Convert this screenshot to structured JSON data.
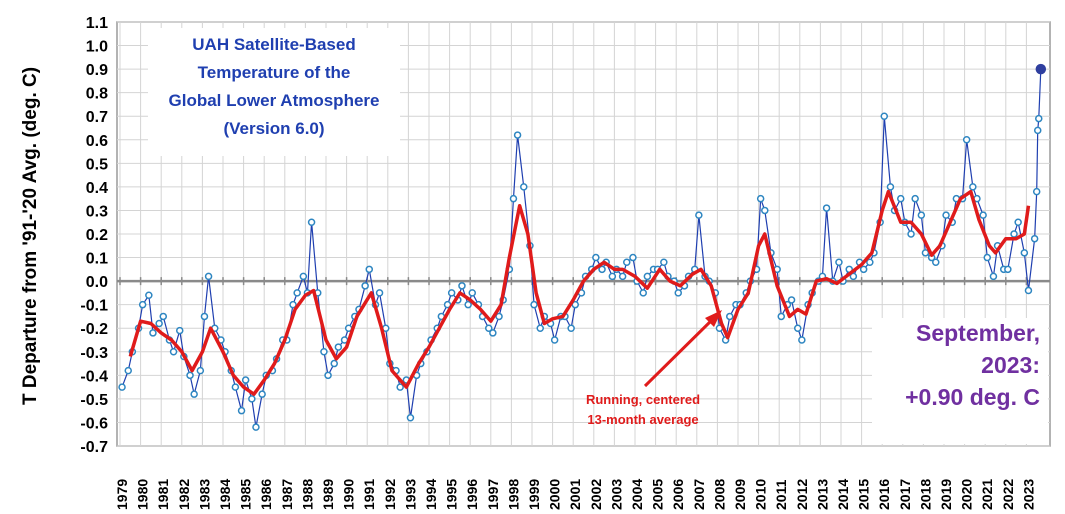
{
  "chart_data": {
    "type": "line",
    "title": [
      "UAH Satellite-Based",
      "Temperature of the",
      "Global Lower Atmosphere",
      "(Version 6.0)"
    ],
    "ylabel": "T Departure from '91-'20 Avg. (deg. C)",
    "xlabel": "",
    "ylim": [
      -0.7,
      1.1
    ],
    "yticks": [
      "1.1",
      "1.0",
      "0.9",
      "0.8",
      "0.7",
      "0.6",
      "0.5",
      "0.4",
      "0.3",
      "0.2",
      "0.1",
      "0.0",
      "-0.1",
      "-0.2",
      "-0.3",
      "-0.4",
      "-0.5",
      "-0.6",
      "-0.7"
    ],
    "xticks": [
      "1979",
      "1980",
      "1981",
      "1982",
      "1983",
      "1984",
      "1985",
      "1986",
      "1987",
      "1988",
      "1989",
      "1990",
      "1991",
      "1992",
      "1993",
      "1994",
      "1995",
      "1996",
      "1997",
      "1998",
      "1999",
      "2000",
      "2001",
      "2002",
      "2003",
      "2004",
      "2005",
      "2006",
      "2007",
      "2008",
      "2009",
      "2010",
      "2011",
      "2012",
      "2013",
      "2014",
      "2015",
      "2016",
      "2017",
      "2018",
      "2019",
      "2020",
      "2021",
      "2022",
      "2023"
    ],
    "grid": true,
    "colors": {
      "monthly": "#1f3fb0",
      "marker": "#2e86c1",
      "running": "#e01b1b",
      "title": "#1f3fb0",
      "annotation": "#7030a0",
      "last_point": "#2f3f9f"
    },
    "series": [
      {
        "kind": "monthly",
        "points": [
          [
            1979.1,
            -0.45
          ],
          [
            1979.4,
            -0.38
          ],
          [
            1979.6,
            -0.3
          ],
          [
            1979.9,
            -0.2
          ],
          [
            1980.1,
            -0.1
          ],
          [
            1980.4,
            -0.06
          ],
          [
            1980.6,
            -0.22
          ],
          [
            1980.9,
            -0.18
          ],
          [
            1981.1,
            -0.15
          ],
          [
            1981.4,
            -0.25
          ],
          [
            1981.6,
            -0.3
          ],
          [
            1981.9,
            -0.21
          ],
          [
            1982.1,
            -0.32
          ],
          [
            1982.4,
            -0.4
          ],
          [
            1982.6,
            -0.48
          ],
          [
            1982.9,
            -0.38
          ],
          [
            1983.1,
            -0.15
          ],
          [
            1983.3,
            0.02
          ],
          [
            1983.6,
            -0.2
          ],
          [
            1983.9,
            -0.25
          ],
          [
            1984.1,
            -0.3
          ],
          [
            1984.4,
            -0.38
          ],
          [
            1984.6,
            -0.45
          ],
          [
            1984.9,
            -0.55
          ],
          [
            1985.1,
            -0.42
          ],
          [
            1985.4,
            -0.5
          ],
          [
            1985.6,
            -0.62
          ],
          [
            1985.9,
            -0.48
          ],
          [
            1986.1,
            -0.4
          ],
          [
            1986.4,
            -0.38
          ],
          [
            1986.6,
            -0.33
          ],
          [
            1986.9,
            -0.25
          ],
          [
            1987.1,
            -0.25
          ],
          [
            1987.4,
            -0.1
          ],
          [
            1987.6,
            -0.05
          ],
          [
            1987.9,
            0.02
          ],
          [
            1988.1,
            -0.05
          ],
          [
            1988.3,
            0.25
          ],
          [
            1988.6,
            -0.05
          ],
          [
            1988.9,
            -0.3
          ],
          [
            1989.1,
            -0.4
          ],
          [
            1989.4,
            -0.35
          ],
          [
            1989.6,
            -0.28
          ],
          [
            1989.9,
            -0.25
          ],
          [
            1990.1,
            -0.2
          ],
          [
            1990.4,
            -0.15
          ],
          [
            1990.6,
            -0.12
          ],
          [
            1990.9,
            -0.02
          ],
          [
            1991.1,
            0.05
          ],
          [
            1991.4,
            -0.1
          ],
          [
            1991.6,
            -0.05
          ],
          [
            1991.9,
            -0.2
          ],
          [
            1992.1,
            -0.35
          ],
          [
            1992.4,
            -0.38
          ],
          [
            1992.6,
            -0.45
          ],
          [
            1992.9,
            -0.42
          ],
          [
            1993.1,
            -0.58
          ],
          [
            1993.4,
            -0.4
          ],
          [
            1993.6,
            -0.35
          ],
          [
            1993.9,
            -0.3
          ],
          [
            1994.1,
            -0.25
          ],
          [
            1994.4,
            -0.2
          ],
          [
            1994.6,
            -0.15
          ],
          [
            1994.9,
            -0.1
          ],
          [
            1995.1,
            -0.05
          ],
          [
            1995.4,
            -0.08
          ],
          [
            1995.6,
            -0.02
          ],
          [
            1995.9,
            -0.1
          ],
          [
            1996.1,
            -0.05
          ],
          [
            1996.4,
            -0.1
          ],
          [
            1996.6,
            -0.15
          ],
          [
            1996.9,
            -0.2
          ],
          [
            1997.1,
            -0.22
          ],
          [
            1997.4,
            -0.15
          ],
          [
            1997.6,
            -0.08
          ],
          [
            1997.9,
            0.05
          ],
          [
            1998.1,
            0.35
          ],
          [
            1998.3,
            0.62
          ],
          [
            1998.6,
            0.4
          ],
          [
            1998.9,
            0.15
          ],
          [
            1999.1,
            -0.1
          ],
          [
            1999.4,
            -0.2
          ],
          [
            1999.6,
            -0.15
          ],
          [
            1999.9,
            -0.18
          ],
          [
            2000.1,
            -0.25
          ],
          [
            2000.4,
            -0.15
          ],
          [
            2000.6,
            -0.15
          ],
          [
            2000.9,
            -0.2
          ],
          [
            2001.1,
            -0.1
          ],
          [
            2001.4,
            -0.05
          ],
          [
            2001.6,
            0.02
          ],
          [
            2001.9,
            0.05
          ],
          [
            2002.1,
            0.1
          ],
          [
            2002.4,
            0.05
          ],
          [
            2002.6,
            0.08
          ],
          [
            2002.9,
            0.02
          ],
          [
            2003.1,
            0.05
          ],
          [
            2003.4,
            0.02
          ],
          [
            2003.6,
            0.08
          ],
          [
            2003.9,
            0.1
          ],
          [
            2004.1,
            0.0
          ],
          [
            2004.4,
            -0.05
          ],
          [
            2004.6,
            0.02
          ],
          [
            2004.9,
            0.05
          ],
          [
            2005.1,
            0.05
          ],
          [
            2005.4,
            0.08
          ],
          [
            2005.6,
            0.02
          ],
          [
            2005.9,
            0.0
          ],
          [
            2006.1,
            -0.05
          ],
          [
            2006.4,
            -0.02
          ],
          [
            2006.6,
            0.02
          ],
          [
            2006.9,
            0.05
          ],
          [
            2007.1,
            0.28
          ],
          [
            2007.4,
            0.02
          ],
          [
            2007.6,
            0.0
          ],
          [
            2007.9,
            -0.05
          ],
          [
            2008.1,
            -0.2
          ],
          [
            2008.4,
            -0.25
          ],
          [
            2008.6,
            -0.15
          ],
          [
            2008.9,
            -0.1
          ],
          [
            2009.1,
            -0.1
          ],
          [
            2009.4,
            -0.05
          ],
          [
            2009.6,
            0.0
          ],
          [
            2009.9,
            0.05
          ],
          [
            2010.1,
            0.35
          ],
          [
            2010.3,
            0.3
          ],
          [
            2010.6,
            0.12
          ],
          [
            2010.9,
            0.05
          ],
          [
            2011.1,
            -0.15
          ],
          [
            2011.4,
            -0.1
          ],
          [
            2011.6,
            -0.08
          ],
          [
            2011.9,
            -0.2
          ],
          [
            2012.1,
            -0.25
          ],
          [
            2012.4,
            -0.1
          ],
          [
            2012.6,
            -0.05
          ],
          [
            2012.9,
            0.0
          ],
          [
            2013.1,
            0.02
          ],
          [
            2013.3,
            0.31
          ],
          [
            2013.6,
            0.0
          ],
          [
            2013.9,
            0.08
          ],
          [
            2014.1,
            0.0
          ],
          [
            2014.4,
            0.05
          ],
          [
            2014.6,
            0.02
          ],
          [
            2014.9,
            0.08
          ],
          [
            2015.1,
            0.05
          ],
          [
            2015.4,
            0.08
          ],
          [
            2015.6,
            0.12
          ],
          [
            2015.9,
            0.25
          ],
          [
            2016.1,
            0.7
          ],
          [
            2016.4,
            0.4
          ],
          [
            2016.6,
            0.3
          ],
          [
            2016.9,
            0.35
          ],
          [
            2017.1,
            0.25
          ],
          [
            2017.4,
            0.2
          ],
          [
            2017.6,
            0.35
          ],
          [
            2017.9,
            0.28
          ],
          [
            2018.1,
            0.12
          ],
          [
            2018.4,
            0.1
          ],
          [
            2018.6,
            0.08
          ],
          [
            2018.9,
            0.15
          ],
          [
            2019.1,
            0.28
          ],
          [
            2019.4,
            0.25
          ],
          [
            2019.6,
            0.35
          ],
          [
            2019.9,
            0.35
          ],
          [
            2020.1,
            0.6
          ],
          [
            2020.4,
            0.4
          ],
          [
            2020.6,
            0.35
          ],
          [
            2020.9,
            0.28
          ],
          [
            2021.1,
            0.1
          ],
          [
            2021.4,
            0.02
          ],
          [
            2021.6,
            0.15
          ],
          [
            2021.9,
            0.05
          ],
          [
            2022.1,
            0.05
          ],
          [
            2022.4,
            0.2
          ],
          [
            2022.6,
            0.25
          ],
          [
            2022.9,
            0.12
          ],
          [
            2023.1,
            -0.04
          ],
          [
            2023.4,
            0.18
          ],
          [
            2023.5,
            0.38
          ],
          [
            2023.55,
            0.64
          ],
          [
            2023.6,
            0.69
          ],
          [
            2023.7,
            0.9
          ]
        ]
      },
      {
        "kind": "running",
        "name": "Running, centered 13-month average",
        "points": [
          [
            1979.5,
            -0.32
          ],
          [
            1980.0,
            -0.17
          ],
          [
            1980.5,
            -0.18
          ],
          [
            1981.0,
            -0.22
          ],
          [
            1981.5,
            -0.25
          ],
          [
            1982.0,
            -0.3
          ],
          [
            1982.5,
            -0.38
          ],
          [
            1983.0,
            -0.3
          ],
          [
            1983.4,
            -0.2
          ],
          [
            1984.0,
            -0.3
          ],
          [
            1984.5,
            -0.4
          ],
          [
            1985.0,
            -0.45
          ],
          [
            1985.5,
            -0.48
          ],
          [
            1986.0,
            -0.42
          ],
          [
            1986.5,
            -0.35
          ],
          [
            1987.0,
            -0.25
          ],
          [
            1987.5,
            -0.12
          ],
          [
            1988.0,
            -0.06
          ],
          [
            1988.4,
            -0.04
          ],
          [
            1989.0,
            -0.25
          ],
          [
            1989.5,
            -0.33
          ],
          [
            1990.0,
            -0.28
          ],
          [
            1990.5,
            -0.15
          ],
          [
            1991.2,
            -0.05
          ],
          [
            1991.7,
            -0.2
          ],
          [
            1992.2,
            -0.38
          ],
          [
            1992.9,
            -0.45
          ],
          [
            1993.5,
            -0.35
          ],
          [
            1994.0,
            -0.28
          ],
          [
            1994.5,
            -0.2
          ],
          [
            1995.0,
            -0.12
          ],
          [
            1995.5,
            -0.05
          ],
          [
            1996.0,
            -0.08
          ],
          [
            1996.5,
            -0.12
          ],
          [
            1997.0,
            -0.17
          ],
          [
            1997.5,
            -0.1
          ],
          [
            1997.9,
            0.1
          ],
          [
            1998.4,
            0.32
          ],
          [
            1998.8,
            0.2
          ],
          [
            1999.2,
            -0.05
          ],
          [
            1999.6,
            -0.18
          ],
          [
            2000.0,
            -0.16
          ],
          [
            2000.5,
            -0.15
          ],
          [
            2001.0,
            -0.08
          ],
          [
            2001.5,
            0.0
          ],
          [
            2002.0,
            0.05
          ],
          [
            2002.5,
            0.08
          ],
          [
            2003.0,
            0.05
          ],
          [
            2003.4,
            0.05
          ],
          [
            2004.0,
            0.02
          ],
          [
            2004.6,
            -0.03
          ],
          [
            2005.2,
            0.05
          ],
          [
            2005.7,
            0.0
          ],
          [
            2006.2,
            -0.02
          ],
          [
            2006.8,
            0.03
          ],
          [
            2007.2,
            0.05
          ],
          [
            2007.7,
            -0.02
          ],
          [
            2008.2,
            -0.18
          ],
          [
            2008.5,
            -0.24
          ],
          [
            2009.0,
            -0.12
          ],
          [
            2009.5,
            -0.05
          ],
          [
            2010.0,
            0.15
          ],
          [
            2010.3,
            0.2
          ],
          [
            2010.9,
            -0.02
          ],
          [
            2011.5,
            -0.15
          ],
          [
            2011.9,
            -0.12
          ],
          [
            2012.3,
            -0.14
          ],
          [
            2012.8,
            0.0
          ],
          [
            2013.3,
            0.01
          ],
          [
            2013.8,
            -0.01
          ],
          [
            2014.4,
            0.03
          ],
          [
            2015.0,
            0.07
          ],
          [
            2015.5,
            0.12
          ],
          [
            2016.0,
            0.3
          ],
          [
            2016.3,
            0.38
          ],
          [
            2016.9,
            0.25
          ],
          [
            2017.4,
            0.25
          ],
          [
            2017.9,
            0.2
          ],
          [
            2018.4,
            0.11
          ],
          [
            2018.8,
            0.15
          ],
          [
            2019.3,
            0.25
          ],
          [
            2019.8,
            0.35
          ],
          [
            2020.3,
            0.38
          ],
          [
            2020.7,
            0.26
          ],
          [
            2021.2,
            0.15
          ],
          [
            2021.5,
            0.12
          ],
          [
            2022.0,
            0.18
          ],
          [
            2022.5,
            0.18
          ],
          [
            2022.9,
            0.2
          ],
          [
            2023.1,
            0.32
          ]
        ]
      }
    ],
    "annotations": {
      "running_label": [
        "Running, centered",
        "13-month average"
      ],
      "latest": [
        "September,",
        "2023:",
        "+0.90 deg. C"
      ]
    }
  }
}
